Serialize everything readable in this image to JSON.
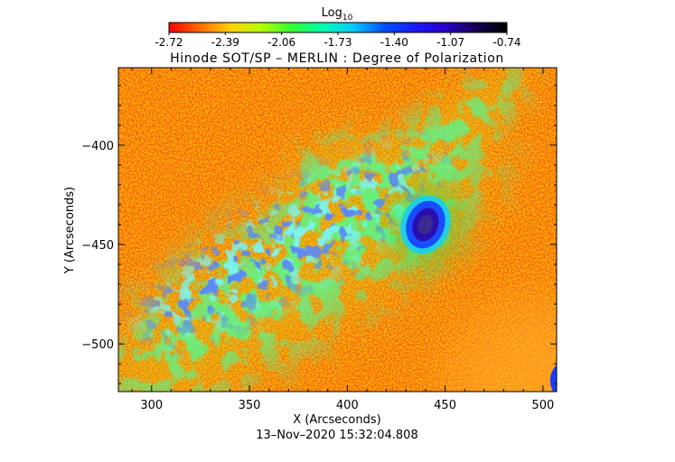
{
  "colorbar": {
    "label_base": "Log",
    "label_sub": "10",
    "ticks": [
      "-2.72",
      "-2.39",
      "-2.06",
      "-1.73",
      "-1.40",
      "-1.07",
      "-0.74"
    ],
    "colors": [
      "#ff0000",
      "#ff6a00",
      "#ffd000",
      "#b6ff00",
      "#30ff30",
      "#00ffb0",
      "#00c8ff",
      "#0050ff",
      "#1a1aff",
      "#2a00c8",
      "#140050",
      "#000000"
    ]
  },
  "chart_data": {
    "type": "heatmap",
    "title": "Hinode SOT/SP – MERLIN : Degree of Polarization",
    "xlabel": "X (Arcseconds)",
    "ylabel": "Y (Arcseconds)",
    "xlim": [
      283,
      507
    ],
    "ylim": [
      -524,
      -361
    ],
    "x_ticks": [
      300,
      350,
      400,
      450,
      500
    ],
    "y_ticks": [
      -400,
      -450,
      -500
    ],
    "colorscale_range": [
      -2.72,
      -0.74
    ],
    "colorscale_label": "Log10",
    "features": [
      {
        "name": "sunspot",
        "x": 440,
        "y": -440,
        "log10_value": -0.9
      },
      {
        "name": "plage-band",
        "x_range": [
          305,
          430
        ],
        "y_range": [
          -500,
          -395
        ],
        "log10_value": -1.6
      }
    ]
  },
  "footer": {
    "timestamp": "13–Nov–2020 15:32:04.808"
  }
}
